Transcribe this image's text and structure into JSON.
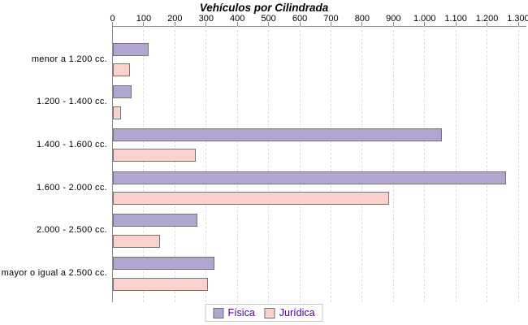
{
  "title": "Vehículos por Cilindrada",
  "colors": {
    "fisica_fill": "#b1a6d0",
    "fisica_border": "#757575",
    "juridica_fill": "#fcd1cd",
    "juridica_border": "#757575",
    "axis": "#8a8a8a",
    "grid": "#dedede",
    "legend_text": "#4b0082",
    "legend_border": "#c9c9c9",
    "title_text": "#000000",
    "background": "#ffffff"
  },
  "chart_data": {
    "type": "bar",
    "orientation": "horizontal",
    "title": "Vehículos por Cilindrada",
    "categories": [
      "menor a 1.200 cc.",
      "1.200 - 1.400 cc.",
      "1.400 - 1.600 cc.",
      "1.600 - 2.000 cc.",
      "2.000 - 2.500 cc.",
      "mayor o igual a 2.500 cc."
    ],
    "series": [
      {
        "name": "Física",
        "color": "#b1a6d0",
        "values": [
          110,
          55,
          1050,
          1255,
          265,
          320
        ]
      },
      {
        "name": "Jurídica",
        "color": "#fcd1cd",
        "values": [
          50,
          20,
          260,
          880,
          145,
          300
        ]
      }
    ],
    "xlim": [
      0,
      1300
    ],
    "x_ticks": [
      0,
      100,
      200,
      300,
      400,
      500,
      600,
      700,
      800,
      900,
      1000,
      1100,
      1200,
      1300
    ],
    "x_tick_labels": [
      "0",
      "100",
      "200",
      "300",
      "400",
      "500",
      "600",
      "700",
      "800",
      "900",
      "1.000",
      "1.100",
      "1.200",
      "1.300"
    ],
    "xlabel": "",
    "ylabel": "",
    "grid": "vertical-dashed",
    "legend_position": "bottom"
  },
  "legend": {
    "items": [
      {
        "label": "Física"
      },
      {
        "label": "Jurídica"
      }
    ]
  }
}
